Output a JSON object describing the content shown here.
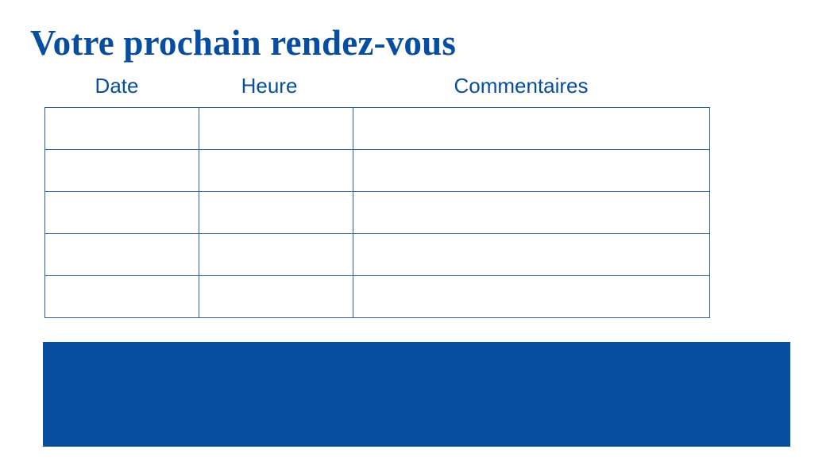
{
  "title": "Votre prochain rendez-vous",
  "table": {
    "headers": [
      "Date",
      "Heure",
      "Commentaires"
    ],
    "rows": [
      [
        "",
        "",
        ""
      ],
      [
        "",
        "",
        ""
      ],
      [
        "",
        "",
        ""
      ],
      [
        "",
        "",
        ""
      ],
      [
        "",
        "",
        ""
      ]
    ]
  },
  "colors": {
    "accent": "#074EA1"
  }
}
